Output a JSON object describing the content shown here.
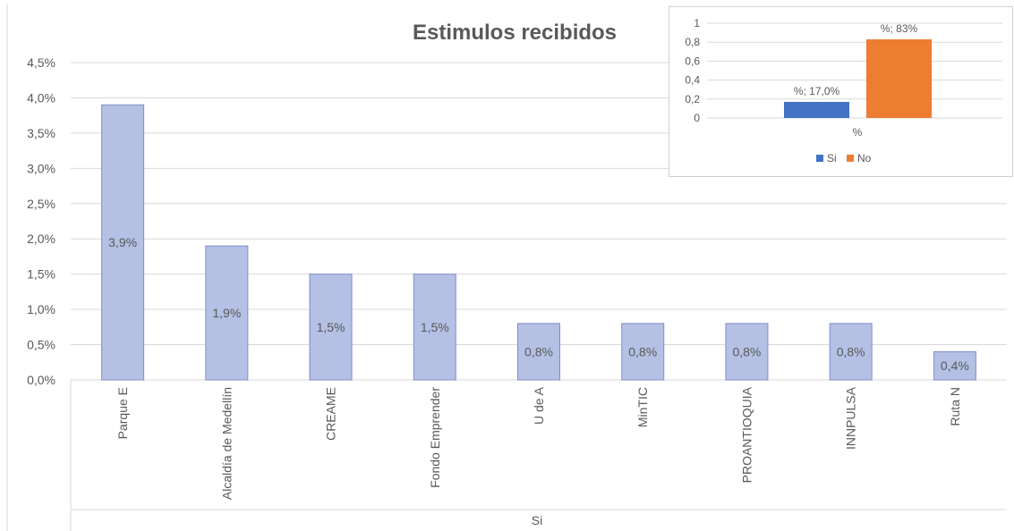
{
  "chart_data": [
    {
      "type": "bar",
      "title": "Estimulos recibidos",
      "xlabel": "Si",
      "ylabel": "",
      "categories": [
        "Parque E",
        "Alcaldía de Medellín",
        "CREAME",
        "Fondo Emprender",
        "U de A",
        "MinTIC",
        "PROANTIOQUIA",
        "INNPULSA",
        "Ruta N"
      ],
      "values": [
        3.9,
        1.9,
        1.5,
        1.5,
        0.8,
        0.8,
        0.8,
        0.8,
        0.4
      ],
      "data_labels": [
        "3,9%",
        "1,9%",
        "1,5%",
        "1,5%",
        "0,8%",
        "0,8%",
        "0,8%",
        "0,8%",
        "0,4%"
      ],
      "ylim": [
        0,
        4.5
      ],
      "yticks": [
        "0,0%",
        "0,5%",
        "1,0%",
        "1,5%",
        "2,0%",
        "2,5%",
        "3,0%",
        "3,5%",
        "4,0%",
        "4,5%"
      ],
      "grid": true,
      "bar_color": "#b4c0e4"
    },
    {
      "type": "bar",
      "title": "",
      "categories": [
        "%"
      ],
      "series": [
        {
          "name": "Si",
          "values": [
            0.17
          ],
          "label": "%; 17,0%",
          "color": "#4472c4"
        },
        {
          "name": "No",
          "values": [
            0.83
          ],
          "label": "%; 83%",
          "color": "#ed7d31"
        }
      ],
      "ylim": [
        0,
        1
      ],
      "yticks": [
        "0",
        "0,2",
        "0,4",
        "0,6",
        "0,8",
        "1"
      ],
      "grid": true,
      "legend_position": "bottom"
    }
  ]
}
